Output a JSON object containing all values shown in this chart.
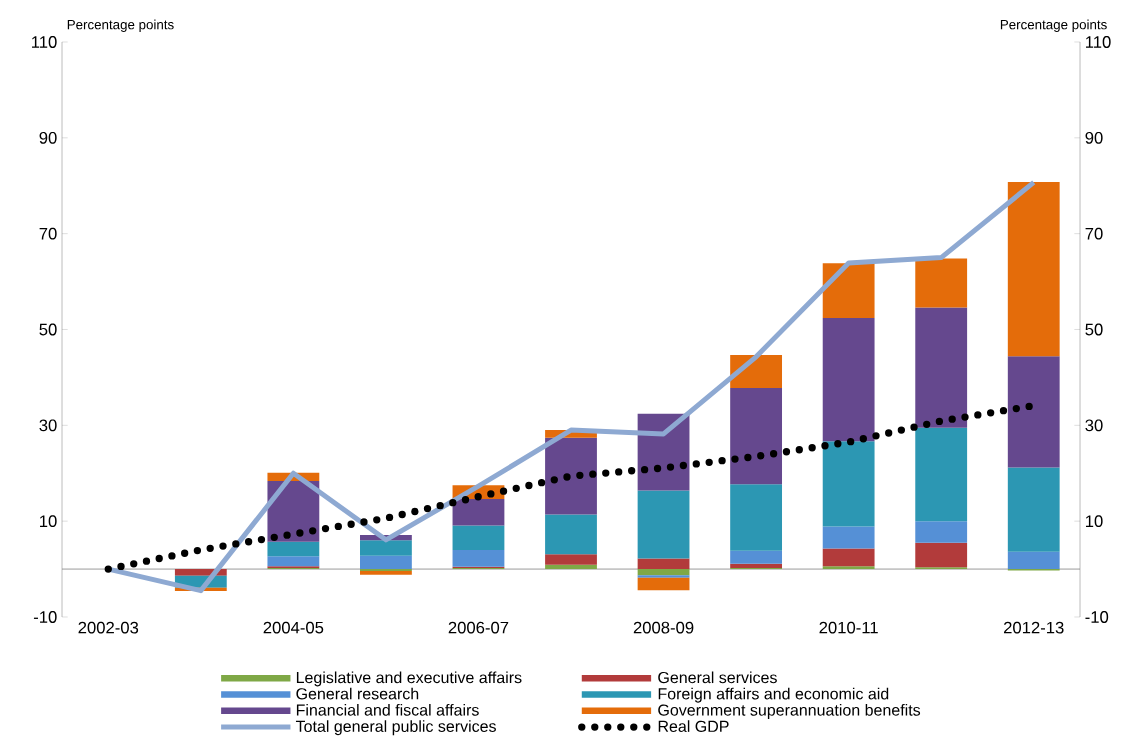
{
  "chart_data": {
    "type": "bar",
    "stacked": true,
    "ylabel": "Percentage points",
    "y2label": "Percentage points",
    "categories": [
      "2002-03",
      null,
      "2004-05",
      null,
      "2006-07",
      null,
      "2008-09",
      null,
      "2010-11",
      null,
      "2012-13"
    ],
    "series": [
      {
        "name": "Legislative and executive affairs",
        "color": "#7fa846",
        "values": [
          0,
          0,
          0.2,
          -0.4,
          0.2,
          0.9,
          -1.3,
          0.2,
          0.6,
          0.4,
          -0.3
        ]
      },
      {
        "name": "General services",
        "color": "#b23b3b",
        "values": [
          0,
          -1.4,
          0.4,
          0,
          0.3,
          2.2,
          2.2,
          0.9,
          3.7,
          5.1,
          0
        ]
      },
      {
        "name": "General research",
        "color": "#5590d6",
        "values": [
          0,
          0,
          2.1,
          2.8,
          3.5,
          0,
          -0.5,
          2.7,
          4.6,
          4.5,
          3.6
        ]
      },
      {
        "name": "Foreign affairs and economic aid",
        "color": "#2c97b3",
        "values": [
          0,
          -2.5,
          3.0,
          3.2,
          5.1,
          8.3,
          14.2,
          13.9,
          17.8,
          19.5,
          17.6
        ]
      },
      {
        "name": "Financial and fiscal affairs",
        "color": "#65488e",
        "values": [
          0,
          0,
          12.7,
          1.1,
          5.5,
          16.0,
          16.0,
          20.1,
          25.7,
          25.1,
          23.2
        ]
      },
      {
        "name": "Government superannuation benefits",
        "color": "#e46c0a",
        "values": [
          0,
          -0.7,
          1.7,
          -0.8,
          2.9,
          1.6,
          -2.6,
          6.9,
          11.4,
          10.2,
          36.4
        ]
      },
      {
        "name": "Total general public services",
        "type": "line",
        "color": "#8ea9d2",
        "line_style": "solid",
        "values": [
          0,
          -4.5,
          20.0,
          6.1,
          17.3,
          29.0,
          28.2,
          44.3,
          63.9,
          65.0,
          80.7
        ]
      },
      {
        "name": "Real GDP",
        "type": "line",
        "color": "#000000",
        "line_style": "dotted",
        "values": [
          0,
          4.0,
          7.3,
          10.6,
          15.1,
          19.4,
          21.1,
          23.5,
          26.5,
          30.9,
          34.1
        ]
      }
    ],
    "ylim": [
      -10,
      110
    ],
    "yticks": [
      -10,
      10,
      30,
      50,
      70,
      90,
      110
    ],
    "y2lim": [
      -10,
      110
    ],
    "y2ticks": [
      -10,
      10,
      30,
      50,
      70,
      90,
      110
    ],
    "legend": "bottom"
  }
}
